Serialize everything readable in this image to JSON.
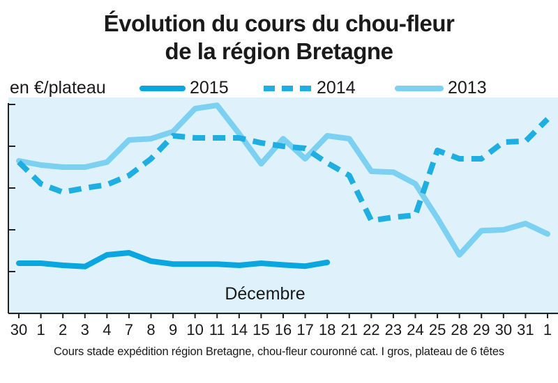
{
  "chart_data": {
    "type": "line",
    "title_line1": "Évolution du cours du chou-fleur",
    "title_line2": "de la région Bretagne",
    "ylabel": "en €/plateau",
    "xlabel": "Décembre",
    "footnote": "Cours stade expédition région Bretagne, chou-fleur couronné cat. I gros, plateau de 6 têtes",
    "categories": [
      "30",
      "1",
      "2",
      "3",
      "4",
      "7",
      "8",
      "9",
      "10",
      "11",
      "14",
      "15",
      "16",
      "17",
      "18",
      "21",
      "22",
      "23",
      "24",
      "25",
      "28",
      "29",
      "30",
      "31",
      "1"
    ],
    "ylim": [
      0,
      5
    ],
    "grid": false,
    "legend_position": "top",
    "series": [
      {
        "name": "2015",
        "style": "solid",
        "color": "#0aa6e0",
        "values": [
          1.2,
          1.2,
          1.15,
          1.12,
          1.4,
          1.45,
          1.25,
          1.18,
          1.18,
          1.18,
          1.15,
          1.2,
          1.16,
          1.13,
          1.22,
          null,
          null,
          null,
          null,
          null,
          null,
          null,
          null,
          null,
          null
        ]
      },
      {
        "name": "2014",
        "style": "dashed",
        "color": "#1eaee2",
        "values": [
          3.62,
          3.1,
          2.9,
          3.0,
          3.08,
          3.3,
          3.7,
          4.25,
          4.2,
          4.2,
          4.2,
          4.08,
          4.0,
          3.95,
          3.6,
          3.3,
          2.22,
          2.3,
          2.35,
          3.9,
          3.7,
          3.7,
          4.1,
          4.12,
          4.65
        ]
      },
      {
        "name": "2013",
        "style": "solid",
        "color": "#7cd0f2",
        "values": [
          3.65,
          3.55,
          3.5,
          3.5,
          3.62,
          4.15,
          4.18,
          4.35,
          4.9,
          4.98,
          4.3,
          3.58,
          4.18,
          3.7,
          4.25,
          4.18,
          3.4,
          3.38,
          3.1,
          2.28,
          1.4,
          1.98,
          2.0,
          2.15,
          1.9
        ]
      }
    ]
  },
  "colors": {
    "plot_background": "#dff2fc",
    "axis": "#222222"
  }
}
